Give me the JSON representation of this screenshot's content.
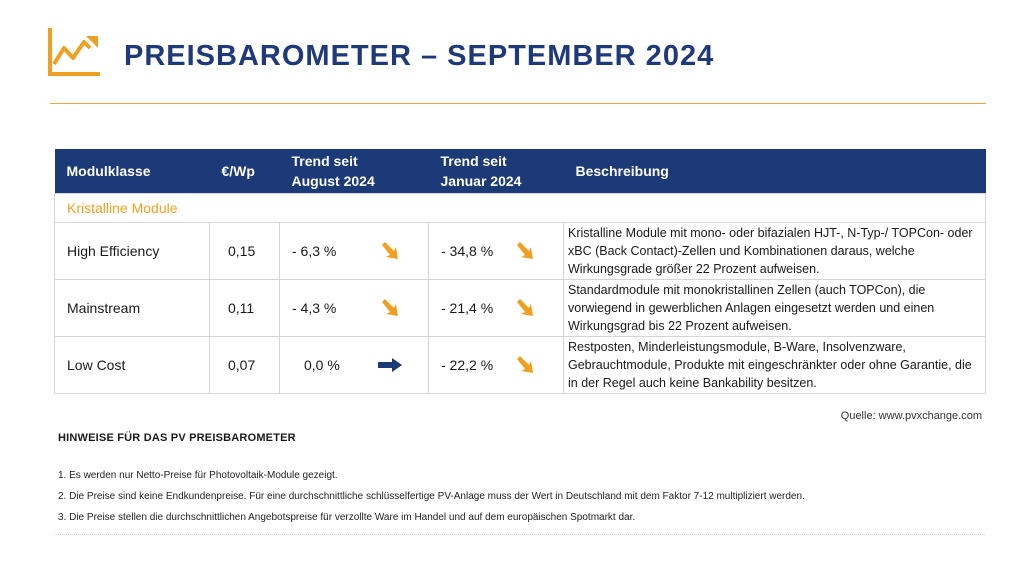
{
  "header": {
    "title": "PREISBAROMETER – SEPTEMBER 2024",
    "accent_color": "#f0a020",
    "brand_color": "#1c3978",
    "logo_icon": "rising-chart-arrow-icon"
  },
  "table": {
    "columns": [
      {
        "line1": "Modulklasse",
        "line2": ""
      },
      {
        "line1": "€/Wp",
        "line2": ""
      },
      {
        "line1": "Trend seit",
        "line2": "August 2024"
      },
      {
        "line1": "Trend seit",
        "line2": "Januar 2024"
      },
      {
        "line1": "Beschreibung",
        "line2": ""
      }
    ],
    "section_label": "Kristalline Module",
    "rows": [
      {
        "name": "High Efficiency",
        "price": "0,15",
        "trend_aug": "- 6,3 %",
        "trend_aug_icon": "arrow-down-right-icon",
        "trend_jan": "- 34,8 %",
        "trend_jan_icon": "arrow-down-right-icon",
        "description": "Kristalline Module mit mono- oder bifazialen HJT-, N-Typ-/ TOPCon- oder xBC (Back Contact)-Zellen und Kombinationen daraus, welche Wirkungsgrade größer 22 Prozent aufweisen."
      },
      {
        "name": "Mainstream",
        "price": "0,11",
        "trend_aug": "- 4,3 %",
        "trend_aug_icon": "arrow-down-right-icon",
        "trend_jan": "- 21,4 %",
        "trend_jan_icon": "arrow-down-right-icon",
        "description": "Standardmodule mit monokristallinen Zellen (auch TOPCon), die vorwiegend in gewerblichen Anlagen eingesetzt werden und einen Wirkungsgrad bis 22 Prozent aufweisen."
      },
      {
        "name": "Low Cost",
        "price": "0,07",
        "trend_aug": "0,0 %",
        "trend_aug_icon": "arrow-right-icon",
        "trend_jan": "- 22,2 %",
        "trend_jan_icon": "arrow-down-right-icon",
        "description": "Restposten, Minderleistungsmodule, B-Ware, Insolvenzware, Gebrauchtmodule, Produkte mit eingeschränkter oder ohne Garantie, die in der Regel auch keine Bankability besitzen."
      }
    ]
  },
  "source": "Quelle: www.pvxchange.com",
  "notes": {
    "heading": "HINWEISE FÜR DAS PV PREISBAROMETER",
    "items": [
      "1.  Es werden nur Netto-Preise für Photovoltaik-Module gezeigt.",
      "2. Die Preise sind keine Endkundenpreise. Für eine durchschnittliche schlüsselfertige PV-Anlage muss der Wert in Deutschland mit dem Faktor 7-12 multipliziert werden.",
      "3. Die Preise stellen die durchschnittlichen Angebotspreise für verzollte Ware im Handel und auf dem europäischen Spotmarkt dar."
    ]
  }
}
